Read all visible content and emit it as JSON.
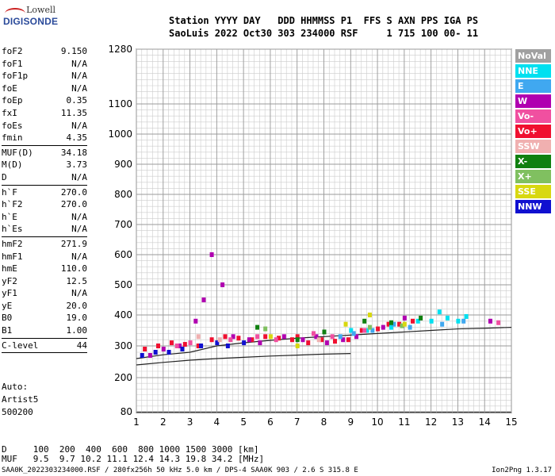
{
  "logo": {
    "line1": "Lowell",
    "line2": "DIGISONDE"
  },
  "header": {
    "line1": "Station YYYY DAY   DDD HHMMSS P1  FFS S AXN PPS IGA PS",
    "line2": "SaoLuis 2022 Oct30 303 234000 RSF     1 715 100 00- 11"
  },
  "params_group1": [
    {
      "k": "foF2",
      "v": "9.150"
    },
    {
      "k": "foF1",
      "v": "N/A"
    },
    {
      "k": "foF1p",
      "v": "N/A"
    },
    {
      "k": "foE",
      "v": "N/A"
    },
    {
      "k": "foEp",
      "v": "0.35"
    },
    {
      "k": "fxI",
      "v": "11.35"
    },
    {
      "k": "foEs",
      "v": "N/A"
    },
    {
      "k": "fmin",
      "v": "4.35"
    }
  ],
  "params_group2": [
    {
      "k": "MUF(D)",
      "v": "34.18"
    },
    {
      "k": "M(D)",
      "v": "3.73"
    },
    {
      "k": "D",
      "v": "N/A"
    }
  ],
  "params_group3": [
    {
      "k": "h`F",
      "v": "270.0"
    },
    {
      "k": "h`F2",
      "v": "270.0"
    },
    {
      "k": "h`E",
      "v": "N/A"
    },
    {
      "k": "h`Es",
      "v": "N/A"
    }
  ],
  "params_group4": [
    {
      "k": "hmF2",
      "v": "271.9"
    },
    {
      "k": "hmF1",
      "v": "N/A"
    },
    {
      "k": "hmE",
      "v": "110.0"
    },
    {
      "k": "yF2",
      "v": "12.5"
    },
    {
      "k": "yF1",
      "v": "N/A"
    },
    {
      "k": "yE",
      "v": "20.0"
    },
    {
      "k": "B0",
      "v": "19.0"
    },
    {
      "k": "B1",
      "v": "1.00"
    }
  ],
  "params_group5": [
    {
      "k": "C-level",
      "v": "44"
    }
  ],
  "auto": {
    "line1": "Auto:",
    "line2": "Artist5",
    "line3": "500200"
  },
  "legend": [
    {
      "label": "NoVal",
      "color": "#a0a0a0"
    },
    {
      "label": "NNE",
      "color": "#00e0f0"
    },
    {
      "label": "E",
      "color": "#40a8f0"
    },
    {
      "label": "W",
      "color": "#b000b0"
    },
    {
      "label": "Vo-",
      "color": "#f050a0"
    },
    {
      "label": "Vo+",
      "color": "#f01030"
    },
    {
      "label": "SSW",
      "color": "#f0b0b0"
    },
    {
      "label": "X-",
      "color": "#108010"
    },
    {
      "label": "X+",
      "color": "#80c060"
    },
    {
      "label": "SSE",
      "color": "#d8d810"
    },
    {
      "label": "NNW",
      "color": "#1010d0"
    }
  ],
  "footer": {
    "d_row": "D     100  200  400  600  800 1000 1500 3000 [km]",
    "muf_row": "MUF   9.5  9.7 10.2 11.1 12.4 14.3 19.8 34.2 [MHz]",
    "bottom_left": "SAA0K_2022303234000.RSF / 280fx256h 50 kHz 5.0 km / DPS-4 SAA0K 903 / 2.6 S 315.8 E",
    "bottom_right": "Ion2Png 1.3.17"
  },
  "chart_data": {
    "type": "scatter",
    "title": "",
    "xlabel": "",
    "ylabel": "",
    "xlim": [
      1,
      15
    ],
    "ylim": [
      80,
      1280
    ],
    "x_ticks": [
      1,
      2,
      3,
      4,
      5,
      6,
      7,
      8,
      9,
      10,
      11,
      12,
      13,
      14,
      15
    ],
    "y_ticks": [
      80,
      200,
      300,
      400,
      500,
      600,
      700,
      800,
      900,
      1000,
      1100,
      1280
    ],
    "y_scale": "virtual-height (nonlinear)",
    "grid": true,
    "series": [
      {
        "name": "Vo+",
        "color": "#f01030",
        "points": [
          [
            1.3,
            290
          ],
          [
            1.8,
            300
          ],
          [
            2.3,
            310
          ],
          [
            2.8,
            305
          ],
          [
            3.3,
            300
          ],
          [
            3.8,
            320
          ],
          [
            4.3,
            330
          ],
          [
            4.8,
            325
          ],
          [
            5.3,
            320
          ],
          [
            5.8,
            330
          ],
          [
            6.3,
            325
          ],
          [
            6.8,
            320
          ],
          [
            7.0,
            330
          ],
          [
            7.4,
            310
          ],
          [
            7.9,
            320
          ],
          [
            8.4,
            315
          ],
          [
            8.9,
            320
          ],
          [
            9.4,
            350
          ],
          [
            10.0,
            355
          ],
          [
            10.4,
            370
          ],
          [
            10.8,
            370
          ],
          [
            11.3,
            380
          ]
        ]
      },
      {
        "name": "W",
        "color": "#b000b0",
        "points": [
          [
            1.5,
            270
          ],
          [
            2.0,
            290
          ],
          [
            2.6,
            300
          ],
          [
            3.2,
            380
          ],
          [
            3.5,
            450
          ],
          [
            3.8,
            600
          ],
          [
            4.2,
            500
          ],
          [
            4.6,
            330
          ],
          [
            5.2,
            320
          ],
          [
            5.6,
            310
          ],
          [
            6.5,
            330
          ],
          [
            7.2,
            320
          ],
          [
            7.7,
            330
          ],
          [
            8.1,
            310
          ],
          [
            8.7,
            320
          ],
          [
            9.2,
            330
          ],
          [
            10.2,
            360
          ],
          [
            11.0,
            390
          ],
          [
            14.2,
            380
          ]
        ]
      },
      {
        "name": "NNE",
        "color": "#00e0f0",
        "points": [
          [
            9.0,
            350
          ],
          [
            9.6,
            350
          ],
          [
            10.5,
            360
          ],
          [
            11.5,
            380
          ],
          [
            12.0,
            380
          ],
          [
            12.3,
            410
          ],
          [
            12.6,
            390
          ],
          [
            13.0,
            380
          ],
          [
            13.3,
            395
          ]
        ]
      },
      {
        "name": "E",
        "color": "#40a8f0",
        "points": [
          [
            8.6,
            330
          ],
          [
            9.1,
            340
          ],
          [
            9.8,
            350
          ],
          [
            10.6,
            370
          ],
          [
            11.2,
            360
          ],
          [
            12.4,
            370
          ],
          [
            13.2,
            380
          ]
        ]
      },
      {
        "name": "NNW",
        "color": "#1010d0",
        "points": [
          [
            1.2,
            270
          ],
          [
            1.7,
            280
          ],
          [
            2.2,
            280
          ],
          [
            2.7,
            290
          ],
          [
            3.4,
            300
          ],
          [
            4.0,
            310
          ],
          [
            4.4,
            300
          ],
          [
            5.0,
            310
          ]
        ]
      },
      {
        "name": "Vo-",
        "color": "#f050a0",
        "points": [
          [
            2.5,
            300
          ],
          [
            3.0,
            310
          ],
          [
            4.5,
            320
          ],
          [
            5.5,
            330
          ],
          [
            6.2,
            320
          ],
          [
            7.6,
            340
          ],
          [
            8.3,
            330
          ],
          [
            9.5,
            350
          ],
          [
            14.5,
            375
          ]
        ]
      },
      {
        "name": "X-",
        "color": "#108010",
        "points": [
          [
            5.5,
            360
          ],
          [
            7.0,
            320
          ],
          [
            8.0,
            345
          ],
          [
            9.5,
            380
          ],
          [
            10.5,
            375
          ],
          [
            11.6,
            390
          ]
        ]
      },
      {
        "name": "X+",
        "color": "#80c060",
        "points": [
          [
            5.8,
            355
          ],
          [
            9.7,
            360
          ],
          [
            10.9,
            365
          ]
        ]
      },
      {
        "name": "SSE",
        "color": "#d8d810",
        "points": [
          [
            6.0,
            330
          ],
          [
            7.0,
            300
          ],
          [
            8.8,
            370
          ],
          [
            9.7,
            400
          ],
          [
            11.0,
            370
          ]
        ]
      },
      {
        "name": "SSW",
        "color": "#f0b0b0",
        "points": [
          [
            3.3,
            330
          ],
          [
            4.1,
            320
          ],
          [
            7.8,
            320
          ]
        ]
      }
    ],
    "fit_curves": [
      {
        "x": [
          1,
          2,
          3,
          4,
          5,
          6,
          7,
          8,
          9
        ],
        "y": [
          240,
          248,
          255,
          260,
          264,
          268,
          271,
          274,
          276
        ]
      },
      {
        "x": [
          1,
          2,
          3,
          4,
          5,
          6,
          7,
          8,
          9,
          10,
          11,
          12,
          13,
          14,
          15
        ],
        "y": [
          260,
          272,
          280,
          300,
          310,
          318,
          325,
          330,
          335,
          340,
          345,
          350,
          355,
          357,
          360
        ]
      }
    ]
  }
}
